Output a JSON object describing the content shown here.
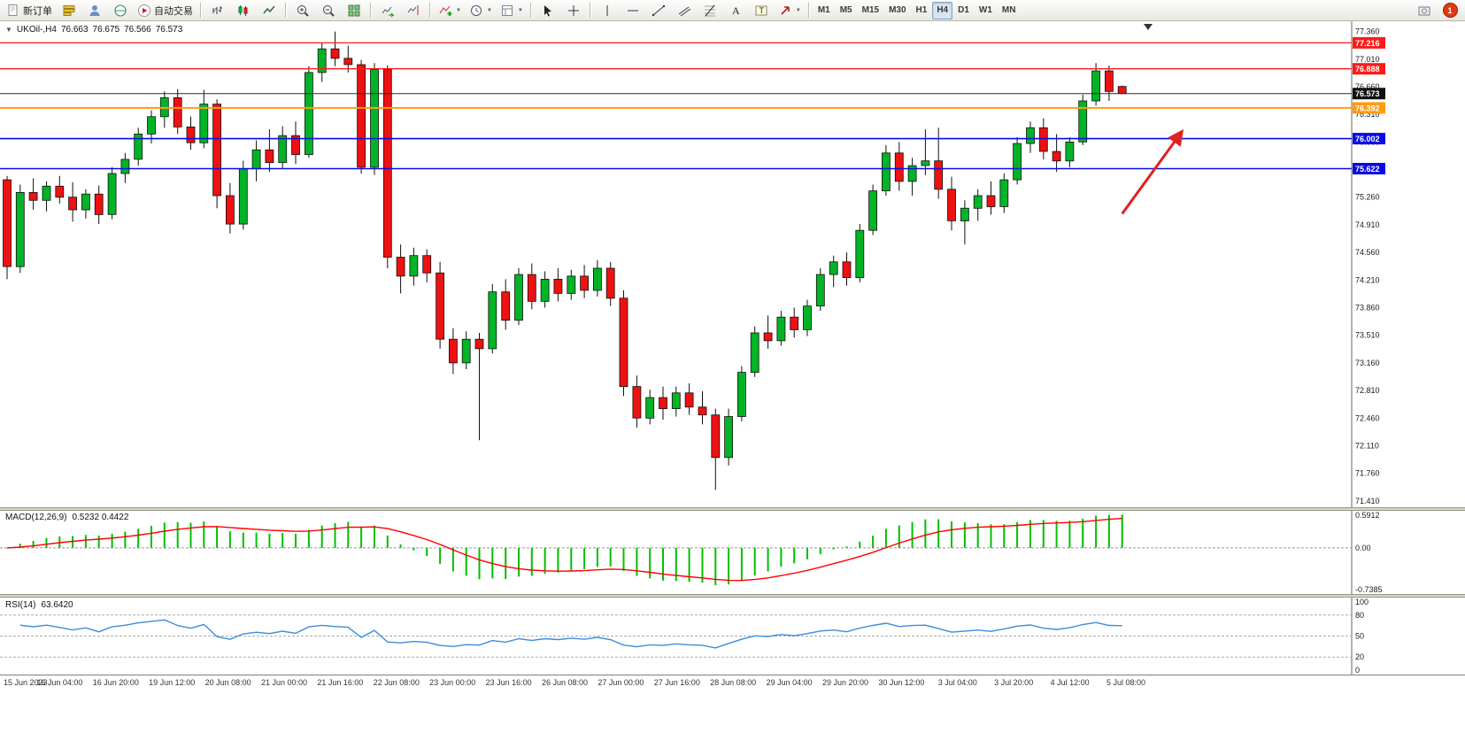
{
  "colors": {
    "up": "#00B426",
    "down": "#EE1111",
    "outline": "#101010",
    "macd_hist": "#00C000",
    "macd_signal": "#FF0000",
    "rsi_line": "#3A8DDE",
    "axis_text": "#1a1a1a"
  },
  "toolbar": {
    "timeframes": [
      "M1",
      "M5",
      "M15",
      "M30",
      "H1",
      "H4",
      "D1",
      "W1",
      "MN"
    ],
    "active_timeframe": "H4",
    "items": [
      {
        "name": "new-order",
        "label": "新订单"
      },
      {
        "name": "market-watch"
      },
      {
        "name": "data-window"
      },
      {
        "name": "navigator"
      },
      {
        "name": "autotrading",
        "label": "自动交易"
      },
      {
        "sep": true
      },
      {
        "name": "bars-chart"
      },
      {
        "name": "candles-chart"
      },
      {
        "name": "line-chart"
      },
      {
        "sep": true
      },
      {
        "name": "zoom-in"
      },
      {
        "name": "zoom-out"
      },
      {
        "name": "tile-windows"
      },
      {
        "sep": true
      },
      {
        "name": "auto-scroll"
      },
      {
        "name": "chart-shift"
      },
      {
        "sep": true
      },
      {
        "name": "indicators-menu",
        "dropdown": true
      },
      {
        "name": "periods-menu",
        "dropdown": true
      },
      {
        "name": "templates-menu",
        "dropdown": true
      },
      {
        "sep": true
      },
      {
        "name": "cursor"
      },
      {
        "name": "crosshair"
      },
      {
        "sep": true
      },
      {
        "name": "vertical-line"
      },
      {
        "name": "horizontal-line"
      },
      {
        "name": "trend-line"
      },
      {
        "name": "channel"
      },
      {
        "name": "fibonacci"
      },
      {
        "name": "text"
      },
      {
        "name": "text-label"
      },
      {
        "name": "arrows-menu",
        "dropdown": true
      },
      {
        "sep": true
      },
      {
        "timeframes": true
      },
      {
        "spacer": true
      },
      {
        "name": "screenshot"
      },
      {
        "name": "notification",
        "badge": "1"
      }
    ]
  },
  "main": {
    "collapse_arrow": "▼",
    "symbol": "UKOil-,H4",
    "ohlc": {
      "open": "76.663",
      "high": "76.675",
      "low": "76.566",
      "close": "76.573"
    }
  },
  "indicators": {
    "macd_label": "MACD(12,26,9)",
    "macd_values": "0.5232 0.4422",
    "rsi_label": "RSI(14)",
    "rsi_value": "63.6420"
  },
  "chart_data": [
    {
      "type": "candlestick",
      "title": "UKOil-,H4",
      "timeframe": "H4",
      "ylim": [
        71.33,
        77.49
      ],
      "y_ticks": [
        "77.360",
        "77.010",
        "76.660",
        "76.310",
        "75.960",
        "75.610",
        "75.260",
        "74.910",
        "74.560",
        "74.210",
        "73.860",
        "73.510",
        "73.160",
        "72.810",
        "72.460",
        "72.110",
        "71.760",
        "71.410"
      ],
      "x_labels": [
        "15 Jun 2023",
        "16 Jun 04:00",
        "16 Jun 20:00",
        "19 Jun 12:00",
        "20 Jun 08:00",
        "21 Jun 00:00",
        "21 Jun 16:00",
        "22 Jun 08:00",
        "23 Jun 00:00",
        "23 Jun 16:00",
        "26 Jun 08:00",
        "27 Jun 00:00",
        "27 Jun 16:00",
        "28 Jun 08:00",
        "29 Jun 04:00",
        "29 Jun 20:00",
        "30 Jun 12:00",
        "3 Jul 04:00",
        "3 Jul 20:00",
        "4 Jul 12:00",
        "5 Jul 08:00"
      ],
      "hlines": [
        {
          "name": "red-hline-1",
          "price": 77.216,
          "color": "#FF1A1A",
          "width": 1.3,
          "label": "77.216"
        },
        {
          "name": "red-hline-2",
          "price": 76.888,
          "color": "#FF1A1A",
          "width": 1.3,
          "label": "76.888"
        },
        {
          "name": "bid-price-line",
          "price": 76.573,
          "color": "#2A2A2A",
          "width": 1,
          "label": "76.573",
          "label_bg": "#111111"
        },
        {
          "name": "orange-hline",
          "price": 76.392,
          "color": "#FF9C14",
          "width": 2,
          "label": "76.392"
        },
        {
          "name": "blue-hline-1",
          "price": 76.002,
          "color": "#0A0AE6",
          "width": 1.6,
          "label": "76.002"
        },
        {
          "name": "blue-hline-2",
          "price": 75.622,
          "color": "#0A0AE6",
          "width": 1.6,
          "label": "75.622"
        }
      ],
      "arrow": {
        "from_index": 85.0,
        "from_price": 75.05,
        "to_index": 89.5,
        "to_price": 76.08,
        "color": "#E02020"
      },
      "candles": [
        [
          75.48,
          75.53,
          74.22,
          74.38
        ],
        [
          74.38,
          75.42,
          74.3,
          75.32
        ],
        [
          75.32,
          75.5,
          75.1,
          75.22
        ],
        [
          75.22,
          75.46,
          75.08,
          75.4
        ],
        [
          75.4,
          75.53,
          75.18,
          75.26
        ],
        [
          75.26,
          75.45,
          74.95,
          75.1
        ],
        [
          75.1,
          75.36,
          74.99,
          75.3
        ],
        [
          75.3,
          75.41,
          74.92,
          75.04
        ],
        [
          75.04,
          75.64,
          74.98,
          75.56
        ],
        [
          75.56,
          75.82,
          75.44,
          75.74
        ],
        [
          75.74,
          76.14,
          75.66,
          76.06
        ],
        [
          76.06,
          76.36,
          75.94,
          76.28
        ],
        [
          76.28,
          76.6,
          76.14,
          76.52
        ],
        [
          76.52,
          76.63,
          76.06,
          76.15
        ],
        [
          76.15,
          76.28,
          75.86,
          75.95
        ],
        [
          75.95,
          76.62,
          75.88,
          76.44
        ],
        [
          76.44,
          76.5,
          75.12,
          75.28
        ],
        [
          75.28,
          75.44,
          74.8,
          74.92
        ],
        [
          74.92,
          75.72,
          74.85,
          75.62
        ],
        [
          75.62,
          75.98,
          75.46,
          75.86
        ],
        [
          75.86,
          76.12,
          75.58,
          75.7
        ],
        [
          75.7,
          76.16,
          75.62,
          76.04
        ],
        [
          76.04,
          76.22,
          75.68,
          75.8
        ],
        [
          75.8,
          76.92,
          75.76,
          76.84
        ],
        [
          76.84,
          77.22,
          76.72,
          77.14
        ],
        [
          77.14,
          77.36,
          76.92,
          77.02
        ],
        [
          77.02,
          77.18,
          76.84,
          76.94
        ],
        [
          76.94,
          77.0,
          75.56,
          75.64
        ],
        [
          75.64,
          76.96,
          75.54,
          76.88
        ],
        [
          76.88,
          76.93,
          74.36,
          74.5
        ],
        [
          74.5,
          74.66,
          74.04,
          74.26
        ],
        [
          74.26,
          74.62,
          74.14,
          74.52
        ],
        [
          74.52,
          74.6,
          74.18,
          74.3
        ],
        [
          74.3,
          74.44,
          73.34,
          73.46
        ],
        [
          73.46,
          73.6,
          73.02,
          73.16
        ],
        [
          73.16,
          73.56,
          73.08,
          73.46
        ],
        [
          73.46,
          73.54,
          72.18,
          73.34
        ],
        [
          73.34,
          74.16,
          73.28,
          74.06
        ],
        [
          74.06,
          74.22,
          73.58,
          73.7
        ],
        [
          73.7,
          74.36,
          73.64,
          74.28
        ],
        [
          74.28,
          74.42,
          73.84,
          73.94
        ],
        [
          73.94,
          74.32,
          73.86,
          74.22
        ],
        [
          74.22,
          74.36,
          73.94,
          74.04
        ],
        [
          74.04,
          74.34,
          73.96,
          74.26
        ],
        [
          74.26,
          74.4,
          73.98,
          74.08
        ],
        [
          74.08,
          74.46,
          74.0,
          74.36
        ],
        [
          74.36,
          74.44,
          73.88,
          73.98
        ],
        [
          73.98,
          74.08,
          72.74,
          72.86
        ],
        [
          72.86,
          73.0,
          72.34,
          72.46
        ],
        [
          72.46,
          72.82,
          72.38,
          72.72
        ],
        [
          72.72,
          72.86,
          72.44,
          72.58
        ],
        [
          72.58,
          72.86,
          72.48,
          72.78
        ],
        [
          72.78,
          72.9,
          72.5,
          72.6
        ],
        [
          72.6,
          72.8,
          72.38,
          72.5
        ],
        [
          72.5,
          72.58,
          71.55,
          71.96
        ],
        [
          71.96,
          72.58,
          71.86,
          72.48
        ],
        [
          72.48,
          73.12,
          72.42,
          73.04
        ],
        [
          73.04,
          73.62,
          72.98,
          73.54
        ],
        [
          73.54,
          73.76,
          73.34,
          73.44
        ],
        [
          73.44,
          73.82,
          73.38,
          73.74
        ],
        [
          73.74,
          73.86,
          73.48,
          73.58
        ],
        [
          73.58,
          73.96,
          73.5,
          73.88
        ],
        [
          73.88,
          74.36,
          73.82,
          74.28
        ],
        [
          74.28,
          74.52,
          74.12,
          74.44
        ],
        [
          74.44,
          74.56,
          74.14,
          74.24
        ],
        [
          74.24,
          74.92,
          74.18,
          74.84
        ],
        [
          74.84,
          75.42,
          74.78,
          75.34
        ],
        [
          75.34,
          75.92,
          75.28,
          75.82
        ],
        [
          75.82,
          75.96,
          75.34,
          75.46
        ],
        [
          75.46,
          75.76,
          75.28,
          75.66
        ],
        [
          75.66,
          76.12,
          75.54,
          75.72
        ],
        [
          75.72,
          76.14,
          75.24,
          75.36
        ],
        [
          75.36,
          75.52,
          74.84,
          74.96
        ],
        [
          74.96,
          75.22,
          74.66,
          75.12
        ],
        [
          75.12,
          75.36,
          74.96,
          75.28
        ],
        [
          75.28,
          75.46,
          75.04,
          75.14
        ],
        [
          75.14,
          75.56,
          75.06,
          75.48
        ],
        [
          75.48,
          76.02,
          75.42,
          75.94
        ],
        [
          75.94,
          76.22,
          75.82,
          76.14
        ],
        [
          76.14,
          76.26,
          75.74,
          75.84
        ],
        [
          75.84,
          76.06,
          75.58,
          75.72
        ],
        [
          75.72,
          76.02,
          75.64,
          75.96
        ],
        [
          75.96,
          76.56,
          75.92,
          76.48
        ],
        [
          76.48,
          76.96,
          76.42,
          76.86
        ],
        [
          76.86,
          76.93,
          76.48,
          76.6
        ],
        [
          76.663,
          76.675,
          76.566,
          76.573
        ]
      ]
    },
    {
      "type": "bar",
      "name": "MACD",
      "params": "12,26,9",
      "value_main": "0.5232",
      "value_signal": "0.4422",
      "axis_labels": [
        "0.5912",
        "0.00",
        "-0.7385"
      ],
      "ylim": [
        -0.82,
        0.66
      ],
      "derived_from": "EMA(12)-EMA(26) of closes, signal = EMA(9) of MACD"
    },
    {
      "type": "line",
      "name": "RSI",
      "params": "14",
      "value": "63.6420",
      "axis_labels": [
        "100",
        "80",
        "50",
        "20",
        "0"
      ],
      "levels": [
        80,
        50,
        20
      ],
      "ylim": [
        0,
        100
      ],
      "derived_from": "RSI(14) of closes"
    }
  ]
}
